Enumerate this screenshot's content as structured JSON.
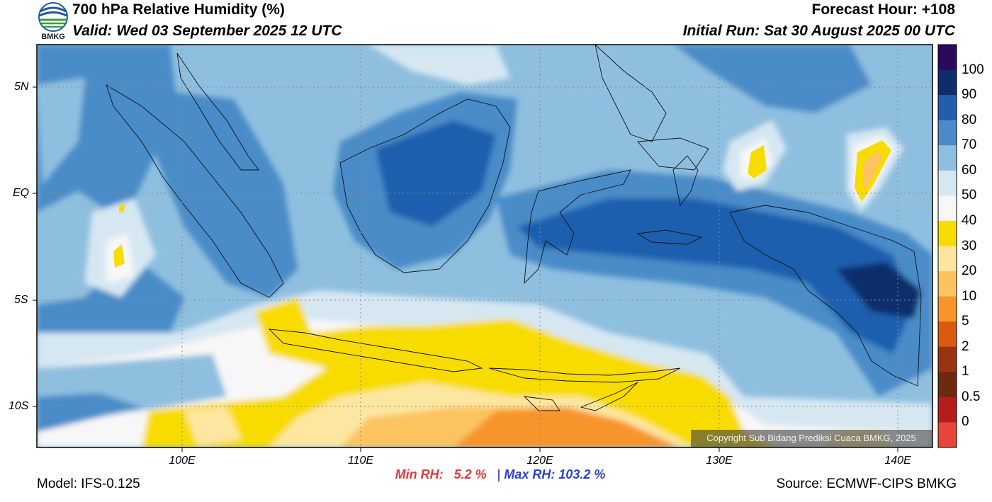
{
  "header": {
    "title": "700 hPa Relative Humidity (%)",
    "valid": "Valid: Wed 03 September 2025 12 UTC",
    "forecast_hour": "Forecast Hour: +108",
    "initial_run": "Initial Run: Sat 30 August 2025 00 UTC"
  },
  "logo": {
    "text": "BMKG",
    "icon": "bmkg-logo-icon"
  },
  "map": {
    "lon_range": [
      92,
      142
    ],
    "lat_range": [
      -12,
      7
    ],
    "lat_labels": [
      "5N",
      "EQ",
      "5S",
      "10S"
    ],
    "lon_labels": [
      "100E",
      "110E",
      "120E",
      "130E",
      "140E"
    ]
  },
  "colorbar": {
    "levels": [
      "100",
      "90",
      "80",
      "70",
      "60",
      "50",
      "40",
      "30",
      "20",
      "10",
      "5",
      "2",
      "1",
      "0.5",
      "0"
    ],
    "colors": [
      "#2a0a5a",
      "#0d2d6b",
      "#1f5fae",
      "#4a8cc8",
      "#8fbfdf",
      "#d6e7f2",
      "#f7f7f7",
      "#f8dc00",
      "#fde6a0",
      "#fcc45e",
      "#f7952a",
      "#d95a10",
      "#9a3410",
      "#6d2a12",
      "#b51c1c",
      "#e8453a"
    ]
  },
  "stats": {
    "min_label": "Min RH:",
    "min_value": "5.2 %",
    "separator": "|",
    "max_label": "Max RH:",
    "max_value": "103.2 %"
  },
  "footer": {
    "model": "Model: IFS-0.125",
    "source": "Source: ECMWF-CIPS BMKG",
    "copyright": "Copyright Sub Bidang Prediksi Cuaca BMKG, 2025"
  }
}
